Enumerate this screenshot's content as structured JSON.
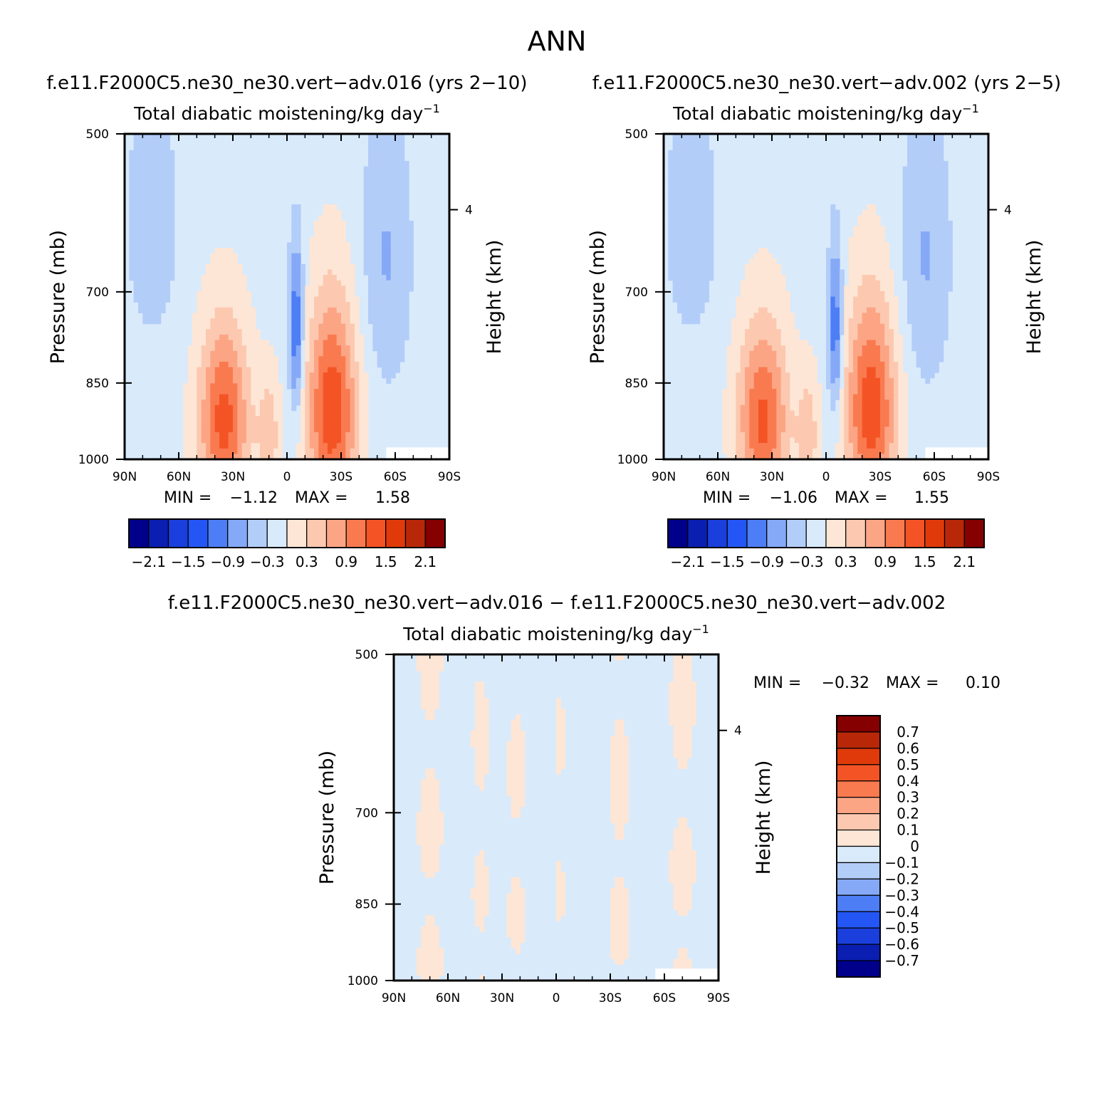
{
  "figure": {
    "title": "ANN"
  },
  "colors": {
    "panel_scale": [
      "#00008b",
      "#0b1eb2",
      "#1a3fdc",
      "#2456f5",
      "#4e7ef6",
      "#85a9f7",
      "#b3cdf9",
      "#d9eafb",
      "#fde6d6",
      "#fcc9b0",
      "#fca585",
      "#fa7a50",
      "#f45425",
      "#e03a0b",
      "#b82808",
      "#850000"
    ],
    "diff_scale": [
      "#00008b",
      "#0b1eb2",
      "#1a3fdc",
      "#2456f5",
      "#4e7ef6",
      "#85a9f7",
      "#b3cdf9",
      "#d9eafb",
      "#fde6d6",
      "#fcc9b0",
      "#fca585",
      "#fa7a50",
      "#f45425",
      "#e03a0b",
      "#b82808",
      "#850000"
    ],
    "missing": "#ffffff"
  },
  "chart_data": [
    {
      "type": "heatmap",
      "case": "f.e11.F2000C5.ne30_ne30.vert-adv.016 (yrs 2-10)",
      "title": "Total diabatic moistening/kg day",
      "title_superscript": "-1",
      "xlabel": "",
      "ylabel": "Pressure (mb)",
      "ylabel_right": "Height (km)",
      "x_ticks": [
        "90N",
        "60N",
        "30N",
        "0",
        "30S",
        "60S",
        "90S"
      ],
      "x_values": [
        90,
        60,
        30,
        0,
        -30,
        -60,
        -90
      ],
      "y_ticks": [
        "500",
        "700",
        "850",
        "1000"
      ],
      "y_values": [
        500,
        700,
        850,
        1000
      ],
      "y_right_ticks": [
        "4"
      ],
      "ylim": [
        1000,
        500
      ],
      "stats": {
        "min_label": "MIN =",
        "min": "-1.12",
        "max_label": "MAX =",
        "max": "1.58"
      },
      "colorbar": {
        "orientation": "horizontal",
        "labels": [
          "-2.1",
          "-1.5",
          "-0.9",
          "-0.3",
          "0.3",
          "0.9",
          "1.5",
          "2.1"
        ],
        "levels": [
          -2.1,
          -1.8,
          -1.5,
          -1.2,
          -0.9,
          -0.6,
          -0.3,
          0,
          0.3,
          0.6,
          0.9,
          1.2,
          1.5,
          1.8,
          2.1
        ]
      },
      "field": {
        "scale": 0.3,
        "peaks": [
          {
            "lat": -5,
            "p": 760,
            "amp": -1.12,
            "slat": 4,
            "sp": 140
          },
          {
            "lat": 75,
            "p": 600,
            "amp": -0.45,
            "slat": 14,
            "sp": 160
          },
          {
            "lat": -55,
            "p": 650,
            "amp": -0.5,
            "slat": 14,
            "sp": 200
          },
          {
            "lat": 35,
            "p": 920,
            "amp": 1.45,
            "slat": 14,
            "sp": 180
          },
          {
            "lat": -25,
            "p": 900,
            "amp": 1.58,
            "slat": 14,
            "sp": 200
          },
          {
            "lat": 10,
            "p": 950,
            "amp": 0.6,
            "slat": 6,
            "sp": 120
          }
        ],
        "missing_box": {
          "lat0": -55,
          "lat1": -90,
          "p0": 975,
          "p1": 1000
        }
      }
    },
    {
      "type": "heatmap",
      "case": "f.e11.F2000C5.ne30_ne30.vert-adv.002 (yrs 2-5)",
      "title": "Total diabatic moistening/kg day",
      "title_superscript": "-1",
      "xlabel": "",
      "ylabel": "Pressure (mb)",
      "ylabel_right": "Height (km)",
      "x_ticks": [
        "90N",
        "60N",
        "30N",
        "0",
        "30S",
        "60S",
        "90S"
      ],
      "x_values": [
        90,
        60,
        30,
        0,
        -30,
        -60,
        -90
      ],
      "y_ticks": [
        "500",
        "700",
        "850",
        "1000"
      ],
      "y_values": [
        500,
        700,
        850,
        1000
      ],
      "y_right_ticks": [
        "4"
      ],
      "ylim": [
        1000,
        500
      ],
      "stats": {
        "min_label": "MIN =",
        "min": "-1.06",
        "max_label": "MAX =",
        "max": "1.55"
      },
      "colorbar": {
        "orientation": "horizontal",
        "labels": [
          "-2.1",
          "-1.5",
          "-0.9",
          "-0.3",
          "0.3",
          "0.9",
          "1.5",
          "2.1"
        ],
        "levels": [
          -2.1,
          -1.8,
          -1.5,
          -1.2,
          -0.9,
          -0.6,
          -0.3,
          0,
          0.3,
          0.6,
          0.9,
          1.2,
          1.5,
          1.8,
          2.1
        ]
      },
      "field": {
        "scale": 0.3,
        "peaks": [
          {
            "lat": -5,
            "p": 760,
            "amp": -1.06,
            "slat": 4,
            "sp": 140
          },
          {
            "lat": 75,
            "p": 600,
            "amp": -0.45,
            "slat": 14,
            "sp": 160
          },
          {
            "lat": -55,
            "p": 650,
            "amp": -0.5,
            "slat": 14,
            "sp": 200
          },
          {
            "lat": 35,
            "p": 920,
            "amp": 1.4,
            "slat": 14,
            "sp": 180
          },
          {
            "lat": -25,
            "p": 900,
            "amp": 1.55,
            "slat": 14,
            "sp": 200
          },
          {
            "lat": 10,
            "p": 950,
            "amp": 0.6,
            "slat": 6,
            "sp": 120
          }
        ],
        "missing_box": {
          "lat0": -55,
          "lat1": -90,
          "p0": 975,
          "p1": 1000
        }
      }
    },
    {
      "type": "heatmap",
      "case": "f.e11.F2000C5.ne30_ne30.vert-adv.016 - f.e11.F2000C5.ne30_ne30.vert-adv.002",
      "title": "Total diabatic moistening/kg day",
      "title_superscript": "-1",
      "xlabel": "",
      "ylabel": "Pressure (mb)",
      "ylabel_right": "Height (km)",
      "x_ticks": [
        "90N",
        "60N",
        "30N",
        "0",
        "30S",
        "60S",
        "90S"
      ],
      "x_values": [
        90,
        60,
        30,
        0,
        -30,
        -60,
        -90
      ],
      "y_ticks": [
        "500",
        "700",
        "850",
        "1000"
      ],
      "y_values": [
        500,
        700,
        850,
        1000
      ],
      "y_right_ticks": [
        "4"
      ],
      "ylim": [
        1000,
        500
      ],
      "stats": {
        "min_label": "MIN =",
        "min": "-0.32",
        "max_label": "MAX =",
        "max": "0.10"
      },
      "colorbar": {
        "orientation": "vertical",
        "labels": [
          "0.7",
          "0.6",
          "0.5",
          "0.4",
          "0.3",
          "0.2",
          "0.1",
          "0",
          "-0.1",
          "-0.2",
          "-0.3",
          "-0.4",
          "-0.5",
          "-0.6",
          "-0.7"
        ],
        "levels": [
          -0.7,
          -0.6,
          -0.5,
          -0.4,
          -0.3,
          -0.2,
          -0.1,
          0,
          0.1,
          0.2,
          0.3,
          0.4,
          0.5,
          0.6,
          0.7
        ]
      },
      "field": {
        "scale": 0.1,
        "stripes": [
          {
            "lat": 70,
            "w": 8,
            "amp": 0.06
          },
          {
            "lat": 42,
            "w": 6,
            "amp": 0.05
          },
          {
            "lat": 22,
            "w": 7,
            "amp": 0.05
          },
          {
            "lat": -2,
            "w": 5,
            "amp": 0.04
          },
          {
            "lat": -35,
            "w": 7,
            "amp": 0.06
          },
          {
            "lat": -70,
            "w": 8,
            "amp": 0.06
          }
        ],
        "missing_box": {
          "lat0": -55,
          "lat1": -90,
          "p0": 975,
          "p1": 1000
        }
      }
    }
  ]
}
